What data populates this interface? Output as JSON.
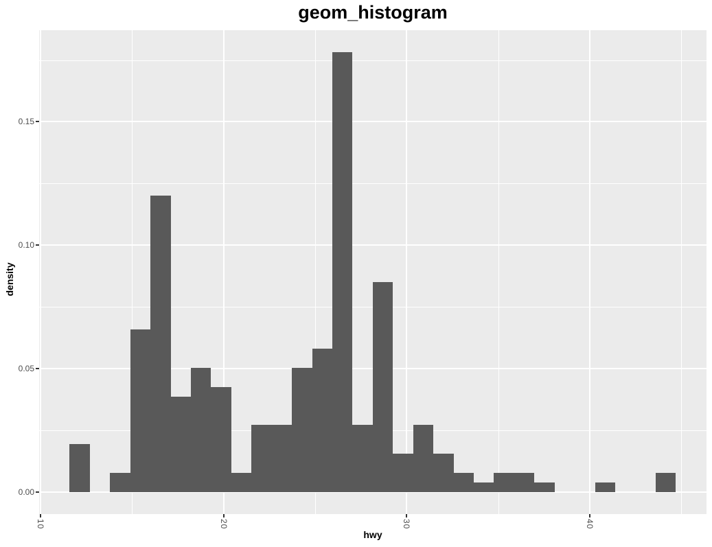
{
  "chart_data": {
    "type": "bar",
    "subtype": "histogram",
    "title": "geom_histogram",
    "xlabel": "hwy",
    "ylabel": "density",
    "xlim": [
      9.92,
      46.37
    ],
    "ylim": [
      -0.0089,
      0.1871
    ],
    "binwidth": 1.1034,
    "bin_start": 11.586,
    "grid": "on",
    "legend": "none",
    "x_axis": {
      "title": "hwy",
      "ticks": [
        {
          "value": 10,
          "label": "10"
        },
        {
          "value": 20,
          "label": "20"
        },
        {
          "value": 30,
          "label": "30"
        },
        {
          "value": 40,
          "label": "40"
        }
      ],
      "minor_gridlines": [
        15,
        25,
        35,
        45
      ],
      "tick_label_rotation_deg": 90
    },
    "y_axis": {
      "title": "density",
      "ticks": [
        {
          "value": 0.0,
          "label": "0.00"
        },
        {
          "value": 0.05,
          "label": "0.05"
        },
        {
          "value": 0.1,
          "label": "0.10"
        },
        {
          "value": 0.15,
          "label": "0.15"
        }
      ],
      "minor_gridlines": [
        0.025,
        0.075,
        0.125,
        0.175
      ]
    },
    "bins": [
      {
        "center": 12.138,
        "count": 5,
        "density": 0.01936
      },
      {
        "center": 13.241,
        "count": 0,
        "density": 0.0
      },
      {
        "center": 14.345,
        "count": 2,
        "density": 0.00775
      },
      {
        "center": 15.448,
        "count": 17,
        "density": 0.06584
      },
      {
        "center": 16.552,
        "count": 31,
        "density": 0.12006
      },
      {
        "center": 17.655,
        "count": 10,
        "density": 0.03873
      },
      {
        "center": 18.759,
        "count": 13,
        "density": 0.05035
      },
      {
        "center": 19.862,
        "count": 11,
        "density": 0.0426
      },
      {
        "center": 20.966,
        "count": 2,
        "density": 0.00775
      },
      {
        "center": 22.069,
        "count": 7,
        "density": 0.02711
      },
      {
        "center": 23.172,
        "count": 7,
        "density": 0.02711
      },
      {
        "center": 24.276,
        "count": 13,
        "density": 0.05035
      },
      {
        "center": 25.379,
        "count": 15,
        "density": 0.05809
      },
      {
        "center": 26.483,
        "count": 46,
        "density": 0.17815
      },
      {
        "center": 27.586,
        "count": 7,
        "density": 0.02711
      },
      {
        "center": 28.69,
        "count": 22,
        "density": 0.0852
      },
      {
        "center": 29.793,
        "count": 4,
        "density": 0.01549
      },
      {
        "center": 30.897,
        "count": 7,
        "density": 0.02711
      },
      {
        "center": 32.0,
        "count": 4,
        "density": 0.01549
      },
      {
        "center": 33.103,
        "count": 2,
        "density": 0.00775
      },
      {
        "center": 34.207,
        "count": 1,
        "density": 0.00387
      },
      {
        "center": 35.31,
        "count": 2,
        "density": 0.00775
      },
      {
        "center": 36.414,
        "count": 2,
        "density": 0.00775
      },
      {
        "center": 37.517,
        "count": 1,
        "density": 0.00387
      },
      {
        "center": 38.621,
        "count": 0,
        "density": 0.0
      },
      {
        "center": 39.724,
        "count": 0,
        "density": 0.0
      },
      {
        "center": 40.828,
        "count": 1,
        "density": 0.00387
      },
      {
        "center": 41.931,
        "count": 0,
        "density": 0.0
      },
      {
        "center": 43.034,
        "count": 0,
        "density": 0.0
      },
      {
        "center": 44.138,
        "count": 2,
        "density": 0.00775
      }
    ],
    "colors": {
      "bar_fill": "#595959",
      "panel_background": "#EBEBEB",
      "gridline": "#FFFFFF",
      "tick_mark": "#333333",
      "tick_label": "#4D4D4D",
      "title_text": "#000000"
    }
  }
}
